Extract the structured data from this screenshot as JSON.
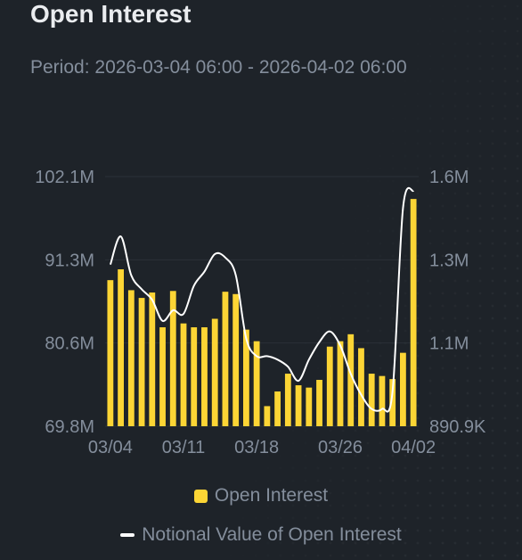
{
  "header": {
    "title": "Open Interest",
    "period_label": "Period:",
    "period_value": "2026-03-04 06:00 - 2026-04-02 06:00"
  },
  "colors": {
    "background": "#1e2329",
    "bar": "#fcd535",
    "line": "#ffffff",
    "axis_text": "#848e9c",
    "grid": "#2b3139"
  },
  "chart_data": {
    "type": "bar",
    "title": "Open Interest",
    "x": [
      "03/04",
      "03/05",
      "03/06",
      "03/07",
      "03/08",
      "03/09",
      "03/10",
      "03/11",
      "03/12",
      "03/13",
      "03/14",
      "03/15",
      "03/16",
      "03/17",
      "03/18",
      "03/19",
      "03/20",
      "03/21",
      "03/22",
      "03/23",
      "03/24",
      "03/25",
      "03/26",
      "03/27",
      "03/28",
      "03/29",
      "03/30",
      "03/31",
      "04/01",
      "04/02"
    ],
    "x_tick_labels": [
      "03/04",
      "03/11",
      "03/18",
      "03/26",
      "04/02"
    ],
    "y_left_ticks": [
      "69.8M",
      "80.6M",
      "91.3M",
      "102.1M"
    ],
    "y_right_ticks": [
      "890.9K",
      "1.1M",
      "1.3M",
      "1.6M"
    ],
    "y_left_range": [
      69.8,
      102.1
    ],
    "y_left_unit": "M",
    "y_right_range": [
      0.8909,
      1.6
    ],
    "y_right_unit": "M",
    "grid": true,
    "legend_position": "bottom",
    "series": [
      {
        "name": "Open Interest",
        "type": "bar",
        "axis": "left",
        "values": [
          88.7,
          90.1,
          87.4,
          86.4,
          87.1,
          82.6,
          87.3,
          83.1,
          82.6,
          82.6,
          83.7,
          87.2,
          86.9,
          82.3,
          80.8,
          72.4,
          74.3,
          76.6,
          75.1,
          74.8,
          75.8,
          80.1,
          80.8,
          81.7,
          79.9,
          76.6,
          76.3,
          75.9,
          79.3,
          99.2
        ]
      },
      {
        "name": "Notional Value of Open Interest",
        "type": "line",
        "axis": "right",
        "values": [
          1.35,
          1.43,
          1.32,
          1.28,
          1.25,
          1.19,
          1.22,
          1.21,
          1.29,
          1.33,
          1.38,
          1.37,
          1.32,
          1.14,
          1.09,
          1.09,
          1.08,
          1.06,
          1.02,
          1.08,
          1.13,
          1.16,
          1.12,
          1.04,
          0.98,
          0.94,
          0.94,
          0.99,
          1.51,
          1.56
        ]
      }
    ]
  }
}
